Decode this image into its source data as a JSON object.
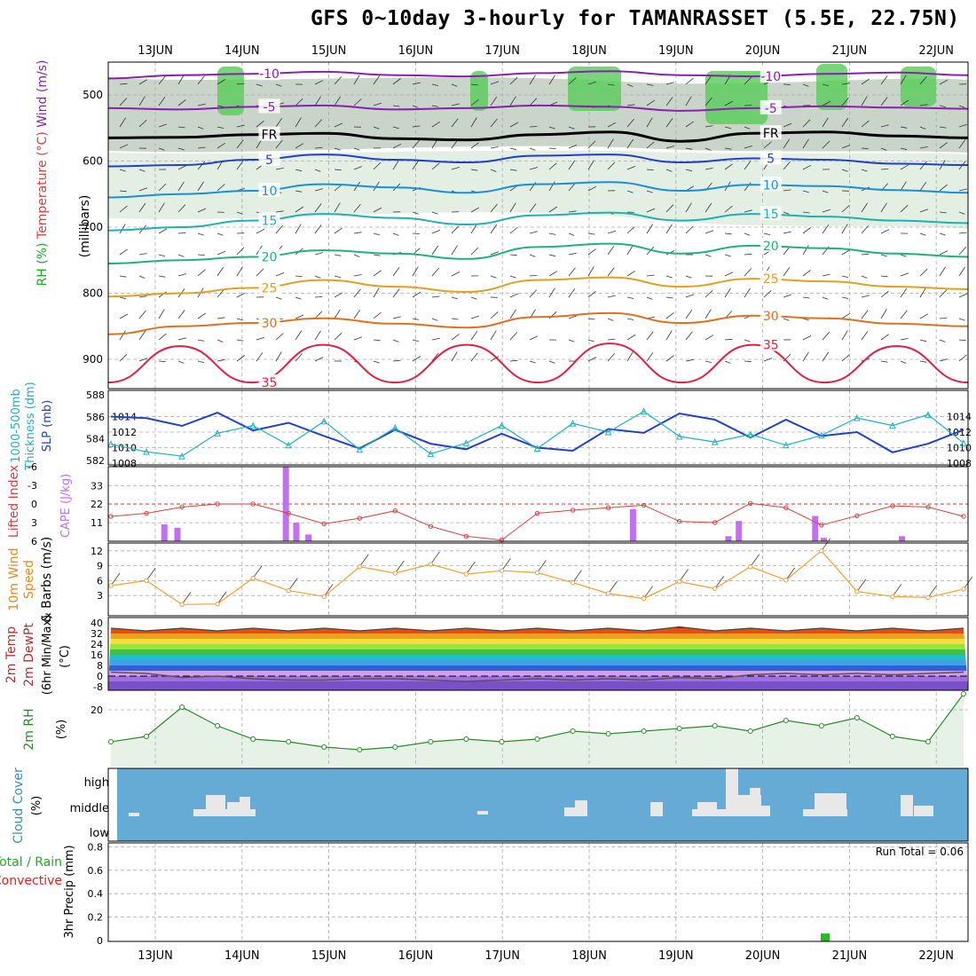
{
  "title": "GFS 0~10day 3-hourly for TAMANRASSET (5.5E, 22.75N)",
  "run_total": "Run Total = 0.06",
  "colors": {
    "grid": "#aaaaaa",
    "temp": "#e0202a",
    "dew": "#555555",
    "slp": "#1f3fcc",
    "thickness": "#20b0c0",
    "lifted": "#d84040",
    "cape": "#c070f0",
    "wind": "#f0a030",
    "rh2m": "#2a8a2a",
    "cloud": "#66aad6",
    "cloud_fill": "#e8e8e8",
    "precip": "#22bb22"
  },
  "chart_data": [
    {
      "panel": "upper-air",
      "type": "contour",
      "xticks": [
        "13JUN",
        "14JUN",
        "15JUN",
        "16JUN",
        "17JUN",
        "18JUN",
        "19JUN",
        "20JUN",
        "21JUN",
        "22JUN"
      ],
      "yticks": [
        500,
        600,
        700,
        800,
        900
      ],
      "ylabel": "(millibars)",
      "legend": [
        "RH (%)",
        "Temperature (°C)",
        "Wind (m/s)"
      ],
      "contours": [
        {
          "level": -10,
          "label": "-10",
          "color": "#8a1fb0",
          "y": [
            475,
            470,
            468,
            465,
            470,
            472,
            467,
            464,
            470,
            472,
            468,
            466,
            470
          ]
        },
        {
          "level": -5,
          "label": "-5",
          "color": "#8a1fb0",
          "y": [
            520,
            522,
            518,
            516,
            522,
            520,
            516,
            518,
            524,
            520,
            517,
            519,
            521
          ]
        },
        {
          "level": 0,
          "label": "FR",
          "color": "#000000",
          "y": [
            565,
            564,
            560,
            558,
            566,
            568,
            560,
            556,
            570,
            558,
            556,
            562,
            565
          ]
        },
        {
          "level": 5,
          "label": "5",
          "color": "#1f3fcc",
          "y": [
            608,
            606,
            598,
            590,
            598,
            602,
            592,
            590,
            602,
            596,
            598,
            604,
            606
          ]
        },
        {
          "level": 10,
          "label": "10",
          "color": "#1a8fd8",
          "y": [
            655,
            650,
            645,
            635,
            640,
            648,
            635,
            632,
            645,
            636,
            638,
            644,
            648
          ]
        },
        {
          "level": 15,
          "label": "15",
          "color": "#20b0b0",
          "y": [
            705,
            700,
            690,
            680,
            686,
            696,
            682,
            678,
            690,
            680,
            684,
            690,
            694
          ]
        },
        {
          "level": 20,
          "label": "20",
          "color": "#20b080",
          "y": [
            755,
            750,
            745,
            735,
            740,
            748,
            730,
            725,
            740,
            728,
            732,
            740,
            745
          ]
        },
        {
          "level": 25,
          "label": "25",
          "color": "#e0a020",
          "y": [
            805,
            800,
            792,
            780,
            790,
            798,
            780,
            776,
            790,
            778,
            782,
            790,
            794
          ]
        },
        {
          "level": 30,
          "label": "30",
          "color": "#e07020",
          "y": [
            862,
            850,
            845,
            838,
            846,
            852,
            836,
            830,
            845,
            834,
            838,
            846,
            850
          ]
        },
        {
          "level": 35,
          "label": "35",
          "color": "#e02040",
          "y": [
            935,
            880,
            935,
            878,
            935,
            878,
            935,
            876,
            935,
            878,
            935,
            880,
            935
          ]
        }
      ]
    },
    {
      "panel": "slp-thickness",
      "type": "line",
      "ylabel_left": "1000-500mb Thickness (dm)",
      "ylabel_right": "SLP (mb)",
      "yticks_left": [
        582,
        584,
        586,
        588
      ],
      "yticks_right": [
        1008,
        1010,
        1012,
        1014
      ],
      "series": [
        {
          "name": "SLP (mb)",
          "values": [
            1014.0,
            1013.8,
            1012.8,
            1014.5,
            1012.2,
            1013.2,
            1011.5,
            1009.9,
            1012.3,
            1010.5,
            1009.8,
            1011.8,
            1010.0,
            1009.6,
            1012.4,
            1011.9,
            1014.4,
            1013.6,
            1011.3,
            1013.6,
            1011.5,
            1012.0,
            1009.4,
            1010.5,
            1012.3
          ]
        },
        {
          "name": "Thickness (dm)",
          "values": [
            583.5,
            582.8,
            582.4,
            584.5,
            585.2,
            583.4,
            585.6,
            583.0,
            585.0,
            582.6,
            583.6,
            585.2,
            583.1,
            585.4,
            584.6,
            586.5,
            584.2,
            583.7,
            584.4,
            583.4,
            584.3,
            585.9,
            585.2,
            586.2,
            583.6
          ]
        }
      ]
    },
    {
      "panel": "lifted-cape",
      "type": "line+bar",
      "ylabel_left": "Lifted Index",
      "ylabel_right": "CAPE (J/kg)",
      "yticks_left": [
        "6",
        "3",
        "0",
        "-3",
        "-6"
      ],
      "yticks_right": [
        11,
        22,
        33
      ],
      "lifted_index": [
        2.0,
        1.5,
        0.5,
        0.0,
        0.0,
        1.5,
        3.2,
        2.3,
        1.1,
        3.6,
        5.2,
        5.8,
        1.5,
        1.0,
        0.6,
        0.2,
        2.8,
        3.0,
        -0.1,
        0.6,
        3.4,
        1.9,
        0.3,
        0.5,
        2.0
      ],
      "cape_bars": [
        {
          "x": 1.1,
          "v": 10
        },
        {
          "x": 1.25,
          "v": 8
        },
        {
          "x": 2.5,
          "v": 44
        },
        {
          "x": 2.62,
          "v": 11
        },
        {
          "x": 2.76,
          "v": 4
        },
        {
          "x": 6.5,
          "v": 19
        },
        {
          "x": 7.6,
          "v": 3
        },
        {
          "x": 7.72,
          "v": 12
        },
        {
          "x": 8.6,
          "v": 15
        },
        {
          "x": 8.7,
          "v": 2
        },
        {
          "x": 9.6,
          "v": 3
        }
      ]
    },
    {
      "panel": "10m-wind",
      "type": "line",
      "ylabel": "10m Wind Speed & Barbs (m/s)",
      "yticks": [
        3,
        6,
        9,
        12
      ],
      "values": [
        5.0,
        6.0,
        1.2,
        1.3,
        6.5,
        4.0,
        2.8,
        8.8,
        7.5,
        9.3,
        7.3,
        8.0,
        7.6,
        5.6,
        3.4,
        2.4,
        5.8,
        4.4,
        8.8,
        6.1,
        12.0,
        3.8,
        2.8,
        2.6,
        4.3
      ]
    },
    {
      "panel": "2m-temp",
      "type": "area",
      "ylabel": "2m Temp 2m DewPt (6hr Min/Max) (°C)",
      "yticks": [
        -8,
        0,
        8,
        16,
        24,
        32,
        40
      ],
      "temp_max": [
        36,
        34,
        36,
        34,
        36,
        34,
        36,
        34,
        36,
        34,
        36,
        34,
        36,
        34,
        36,
        34,
        37,
        34,
        36,
        34,
        36,
        34,
        36,
        34,
        36
      ],
      "dewpoint": [
        3,
        2,
        -1,
        0,
        -2,
        -3,
        -3,
        -2,
        -2,
        -3,
        -4,
        -3,
        -2,
        -3,
        -2,
        -3,
        -1,
        -2,
        1,
        2,
        1,
        2,
        1,
        2,
        3
      ]
    },
    {
      "panel": "2m-rh",
      "type": "line",
      "ylabel": "2m RH (%)",
      "yticks": [
        20
      ],
      "values": [
        8,
        10,
        21,
        14,
        9,
        8,
        6,
        5,
        6,
        8,
        9,
        8,
        9,
        12,
        11,
        12,
        13,
        14,
        12,
        16,
        14,
        17,
        10,
        8,
        26
      ]
    },
    {
      "panel": "cloud-cover",
      "type": "area",
      "ylabel": "Cloud Cover (%)",
      "ytick_labels": [
        "high",
        "middle",
        "low"
      ]
    },
    {
      "panel": "precip",
      "type": "bar",
      "ylabel": "3hr Precip (mm)",
      "legend": [
        "Total / Rain",
        "Convective"
      ],
      "yticks": [
        0,
        0.2,
        0.4,
        0.6,
        0.8
      ],
      "bars": [
        {
          "x": 8.72,
          "value": 0.06
        }
      ]
    }
  ]
}
